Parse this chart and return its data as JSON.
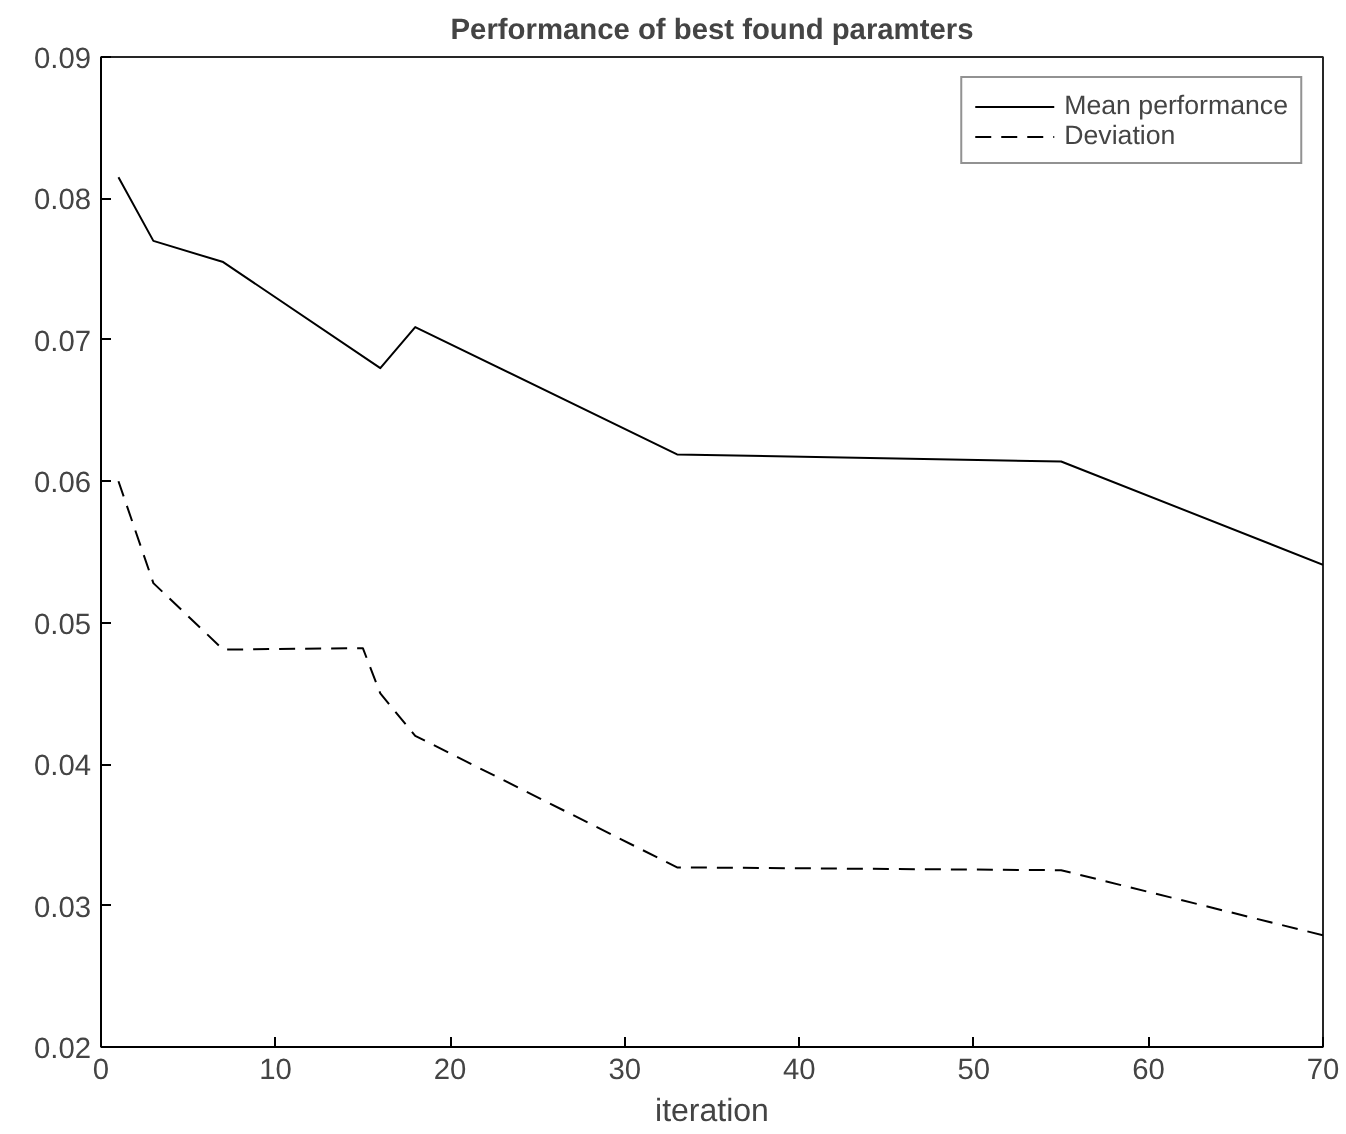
{
  "chart_data": {
    "type": "line",
    "title": "Performance of best found paramters",
    "xlabel": "iteration",
    "xlim": [
      0,
      70
    ],
    "ylim": [
      0.02,
      0.09
    ],
    "xticks": [
      0,
      10,
      20,
      30,
      40,
      50,
      60,
      70
    ],
    "yticks": [
      0.02,
      0.03,
      0.04,
      0.05,
      0.06,
      0.07,
      0.08,
      0.09
    ],
    "grid": false,
    "legend": "top right",
    "marker": "none",
    "series": [
      {
        "name": "Mean performance",
        "color": "#000000",
        "line_style": "solid",
        "x": [
          1,
          3,
          7,
          16,
          18,
          33,
          55,
          70
        ],
        "values": [
          0.0815,
          0.077,
          0.0755,
          0.068,
          0.0709,
          0.0619,
          0.0614,
          0.0541
        ]
      },
      {
        "name": "Deviation",
        "color": "#000000",
        "line_style": "dashed",
        "x": [
          1,
          3,
          7,
          15,
          16,
          18,
          33,
          55,
          70
        ],
        "values": [
          0.06,
          0.0528,
          0.0481,
          0.0482,
          0.045,
          0.042,
          0.0327,
          0.0325,
          0.0279
        ]
      }
    ]
  }
}
